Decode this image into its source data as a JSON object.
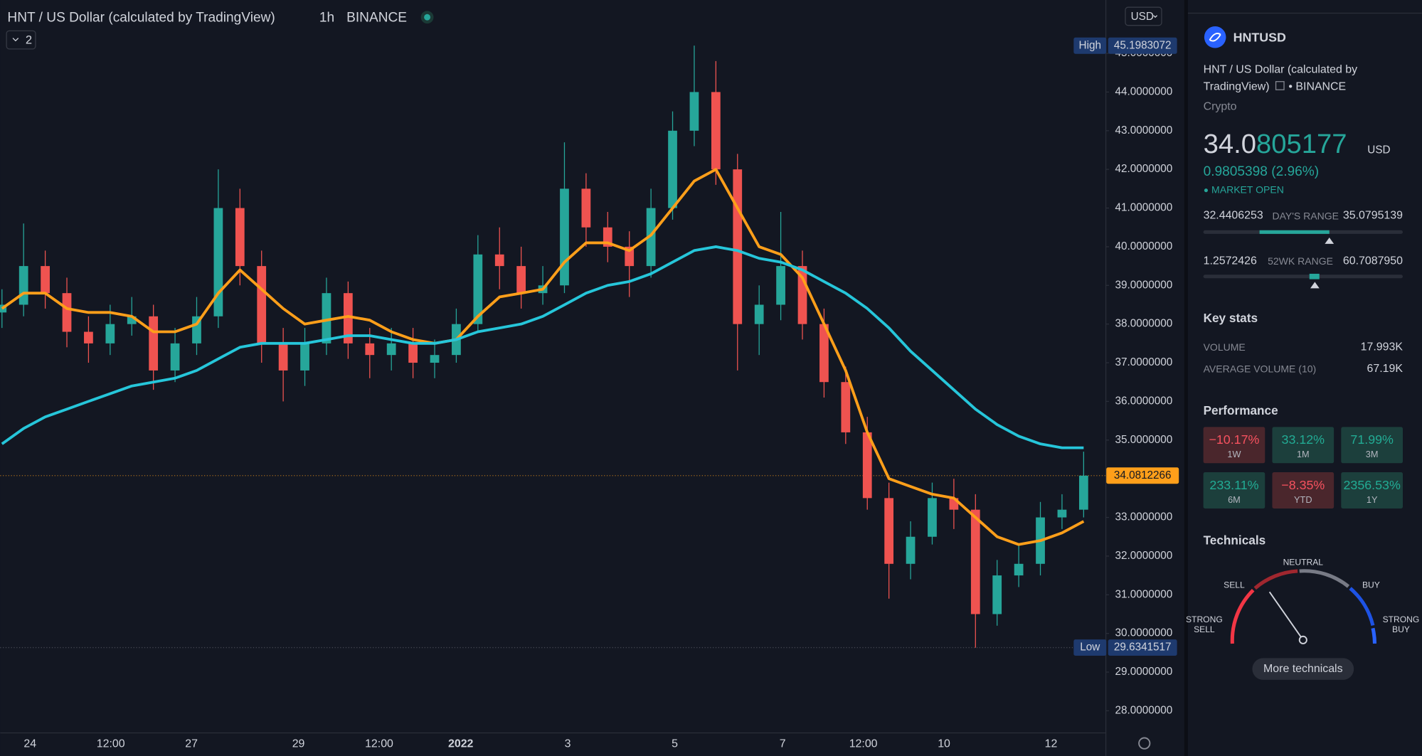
{
  "header": {
    "title": "HNT / US Dollar (calculated by TradingView)",
    "interval": "1h",
    "exchange": "BINANCE",
    "indicators_count": "2",
    "currency": "USD"
  },
  "chart_data": {
    "type": "candlestick",
    "open": [
      38.3,
      38.5,
      39.5,
      38.8,
      37.8,
      37.5,
      38.0,
      38.2,
      36.8,
      37.5,
      38.2,
      41.0,
      39.5,
      37.5,
      36.8,
      37.5,
      38.8,
      37.5,
      37.2,
      37.5,
      37.0,
      37.2,
      38.0,
      39.8,
      39.5,
      38.8,
      39.0,
      41.5,
      40.5,
      40.0,
      39.5,
      41.0,
      43.0,
      44.0,
      42.0,
      38.0,
      38.5,
      39.5,
      38.0,
      36.5,
      35.2,
      33.5,
      31.8,
      32.5,
      33.5,
      33.2,
      30.5,
      31.5,
      31.8,
      33.0,
      33.2
    ],
    "high": [
      38.9,
      40.6,
      39.9,
      39.2,
      38.2,
      38.5,
      38.7,
      38.5,
      37.9,
      38.7,
      42.0,
      41.5,
      39.9,
      37.9,
      37.9,
      39.2,
      39.1,
      37.9,
      37.9,
      37.9,
      37.6,
      38.4,
      40.3,
      40.5,
      40.0,
      39.5,
      42.7,
      41.9,
      40.9,
      40.4,
      41.5,
      43.5,
      45.2,
      44.8,
      42.4,
      39.0,
      40.9,
      39.9,
      38.4,
      36.9,
      35.6,
      33.9,
      32.9,
      33.9,
      34.0,
      33.6,
      31.9,
      32.3,
      33.4,
      33.6,
      34.7
    ],
    "low": [
      37.9,
      38.2,
      38.4,
      37.4,
      37.0,
      37.2,
      37.7,
      36.3,
      36.5,
      37.2,
      37.9,
      39.0,
      37.0,
      36.0,
      36.4,
      37.2,
      37.1,
      36.6,
      36.8,
      36.6,
      36.6,
      37.0,
      37.8,
      38.9,
      38.4,
      38.5,
      38.8,
      40.0,
      39.6,
      38.7,
      39.2,
      40.7,
      42.6,
      41.6,
      36.8,
      37.2,
      38.1,
      37.6,
      36.1,
      34.9,
      33.2,
      30.9,
      31.4,
      32.3,
      32.7,
      29.63,
      30.2,
      31.2,
      31.5,
      32.7,
      33.0
    ],
    "close": [
      38.5,
      39.5,
      38.8,
      37.8,
      37.5,
      38.0,
      38.2,
      36.8,
      37.5,
      38.2,
      41.0,
      39.5,
      37.5,
      36.8,
      37.5,
      38.8,
      37.5,
      37.2,
      37.5,
      37.0,
      37.2,
      38.0,
      39.8,
      39.5,
      38.8,
      39.0,
      41.5,
      40.5,
      40.0,
      39.5,
      41.0,
      43.0,
      44.0,
      42.0,
      38.0,
      38.5,
      39.5,
      38.0,
      36.5,
      35.2,
      33.5,
      31.8,
      32.5,
      33.5,
      33.2,
      30.5,
      31.5,
      31.8,
      33.0,
      33.2,
      34.08
    ],
    "up_color": "#26a69a",
    "down_color": "#ef5350",
    "overlays": [
      {
        "color": "#ff9f1a",
        "values": [
          38.4,
          38.8,
          38.8,
          38.4,
          38.3,
          38.3,
          38.2,
          37.8,
          37.8,
          38.0,
          38.8,
          39.4,
          38.9,
          38.4,
          38.0,
          38.1,
          38.2,
          38.1,
          37.8,
          37.6,
          37.5,
          37.6,
          38.2,
          38.7,
          38.8,
          38.9,
          39.6,
          40.1,
          40.1,
          39.9,
          40.3,
          41.0,
          41.7,
          42.0,
          41.0,
          40.0,
          39.8,
          39.2,
          38.0,
          36.8,
          35.2,
          34.0,
          33.8,
          33.6,
          33.5,
          33.0,
          32.5,
          32.3,
          32.4,
          32.6,
          32.9
        ]
      },
      {
        "color": "#26c6da",
        "values": [
          34.9,
          35.3,
          35.6,
          35.8,
          36.0,
          36.2,
          36.4,
          36.5,
          36.6,
          36.8,
          37.1,
          37.4,
          37.5,
          37.5,
          37.5,
          37.6,
          37.7,
          37.7,
          37.6,
          37.5,
          37.5,
          37.6,
          37.8,
          37.9,
          38.0,
          38.2,
          38.5,
          38.8,
          39.0,
          39.1,
          39.3,
          39.6,
          39.9,
          40.0,
          39.9,
          39.7,
          39.6,
          39.4,
          39.1,
          38.8,
          38.4,
          37.9,
          37.3,
          36.8,
          36.3,
          35.8,
          35.4,
          35.1,
          34.9,
          34.8,
          34.8
        ]
      }
    ],
    "ylim": [
      27.44,
      46.38
    ],
    "yticks": [
      {
        "value": 28,
        "label": "28.0000000"
      },
      {
        "value": 29,
        "label": "29.0000000"
      },
      {
        "value": 30,
        "label": "30.0000000"
      },
      {
        "value": 31,
        "label": "31.0000000"
      },
      {
        "value": 32,
        "label": "32.0000000"
      },
      {
        "value": 33,
        "label": "33.0000000"
      },
      {
        "value": 34,
        "label": "34.0000000"
      },
      {
        "value": 35,
        "label": "35.0000000"
      },
      {
        "value": 36,
        "label": "36.0000000"
      },
      {
        "value": 37,
        "label": "37.0000000"
      },
      {
        "value": 38,
        "label": "38.0000000"
      },
      {
        "value": 39,
        "label": "39.0000000"
      },
      {
        "value": 40,
        "label": "40.0000000"
      },
      {
        "value": 41,
        "label": "41.0000000"
      },
      {
        "value": 42,
        "label": "42.0000000"
      },
      {
        "value": 43,
        "label": "43.0000000"
      },
      {
        "value": 44,
        "label": "44.0000000"
      },
      {
        "value": 45,
        "label": "45.0000000"
      }
    ],
    "x_labels": [
      "24",
      "12:00",
      "27",
      "29",
      "12:00",
      "2022",
      "3",
      "5",
      "7",
      "12:00",
      "10",
      "12"
    ],
    "high_marker": {
      "label": "High",
      "value": 45.1983072
    },
    "low_marker": {
      "label": "Low",
      "value": 29.6341517
    },
    "last_price": 34.0812266
  },
  "panel": {
    "symbol": "HNTUSD",
    "description": [
      "HNT / US Dollar (calculated by",
      "TradingView)"
    ],
    "exchange": "• BINANCE",
    "category": "Crypto",
    "price_head": "34.0",
    "price_tail": "805177",
    "currency": "USD",
    "change": "0.9805398 (2.96%)",
    "status": "MARKET OPEN",
    "day_range": {
      "low": "32.4406253",
      "label": "DAY'S RANGE",
      "high": "35.0795139"
    },
    "week52_range": {
      "low": "1.2572426",
      "label": "52WK RANGE",
      "high": "60.7087950"
    },
    "key_stats": {
      "title": "Key stats",
      "rows": [
        [
          "VOLUME",
          "17.993K"
        ],
        [
          "AVERAGE VOLUME (10)",
          "67.19K"
        ]
      ]
    },
    "performance": {
      "title": "Performance",
      "tiles": [
        {
          "value": "−10.17%",
          "period": "1W",
          "color": "neg"
        },
        {
          "value": "33.12%",
          "period": "1M",
          "color": "pos"
        },
        {
          "value": "71.99%",
          "period": "3M",
          "color": "pos"
        },
        {
          "value": "233.11%",
          "period": "6M",
          "color": "pos"
        },
        {
          "value": "−8.35%",
          "period": "YTD",
          "color": "neg"
        },
        {
          "value": "2356.53%",
          "period": "1Y",
          "color": "pos"
        }
      ]
    },
    "technicals": {
      "title": "Technicals",
      "labels": [
        "STRONG",
        "SELL",
        "SELL",
        "NEUTRAL",
        "BUY",
        "STRONG",
        "BUY"
      ],
      "button": "More technicals"
    }
  }
}
